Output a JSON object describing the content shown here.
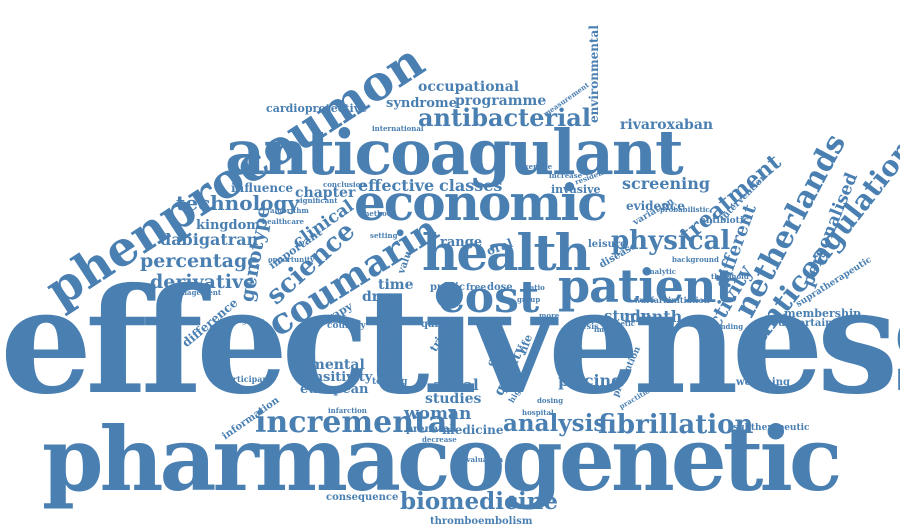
{
  "accent_color": "#4a7fb2",
  "words": {
    "effectiveness": "effectiveness",
    "pharmacogenetic": "pharmacogenetic",
    "anticoagulant": "anticoagulant",
    "phenprocoumon": "phenprocoumon",
    "economic": "economic",
    "health": "health",
    "cost": "cost",
    "patient": "patient",
    "coumarin": "coumarin",
    "netherlands": "netherlands",
    "anticoagulation": "anticoagulation",
    "incremental": "incremental",
    "fibrillation": "fibrillation",
    "analysis": "analysis",
    "biomedicine": "biomedicine",
    "antibacterial": "antibacterial",
    "physical": "physical",
    "science": "science",
    "treatment": "treatment",
    "activity": "activity",
    "different": "different",
    "personalised": "personalised",
    "technology": "technology",
    "percentage": "percentage",
    "derivative": "derivative",
    "dabigatran": "dabigatran",
    "genotype": "genotype",
    "clinical": "clinical",
    "effective": "effective",
    "classes": "classes",
    "screening": "screening",
    "occupational": "occupational",
    "programme": "programme",
    "rivaroxaban": "rivaroxaban",
    "environmental": "environmental",
    "syndrome": "syndrome",
    "cardioprotective": "cardioprotective",
    "influence": "influence",
    "chapter": "chapter",
    "kingdom": "kingdom",
    "woman": "woman",
    "pricing": "pricing",
    "studies": "studies",
    "atrial": "atrial",
    "stroke": "stroke",
    "quality": "quality",
    "month": "month",
    "study": "study",
    "range": "range",
    "oral": "oral",
    "drug": "drug",
    "time": "time",
    "mental": "mental",
    "sensitivity": "sensitivity",
    "european": "european",
    "difference": "difference",
    "membership": "membership",
    "uncertainty": "uncertainty",
    "wellbeing": "wellbeing",
    "subtherapeutic": "subtherapeutic",
    "supratherapeutic": "supratherapeutic",
    "consequence": "consequence",
    "thromboembolism": "thromboembolism",
    "information": "information",
    "medicine": "medicine",
    "prenatal": "prenatal",
    "participant": "participant",
    "testing": "testing",
    "evidence": "evidence",
    "invasive": "invasive",
    "increase": "increase",
    "conclusion": "conclusion",
    "important": "important",
    "therapy": "therapy",
    "country": "country",
    "management": "management",
    "willingness": "willingness",
    "intervention": "intervention",
    "antibiotic": "antibiotic",
    "variation": "variation",
    "measurement": "measurement",
    "international": "international",
    "significant": "significant",
    "leisure": "leisure",
    "disease": "disease",
    "qalys": "qalys",
    "public": "public",
    "free": "free",
    "dose": "dose",
    "care": "care",
    "home": "home",
    "trial": "trial",
    "life": "life",
    "ratio": "ratio",
    "group": "group",
    "more": "more",
    "based": "based",
    "thesis": "thesis",
    "impact": "impact",
    "warfarin": "warfarin",
    "initiation": "initiation",
    "prevention": "prevention",
    "value": "value",
    "setting": "setting",
    "method": "method",
    "healthcare": "healthcare",
    "hospital": "hospital",
    "infarction": "infarction",
    "evaluation": "evaluation",
    "higher": "higher",
    "practitioner": "practitioner",
    "threshold": "threshold",
    "attending": "attending",
    "dosing": "dosing",
    "exercise": "exercise",
    "travel": "travel",
    "genetic": "genetic",
    "probabilistic": "probabilistic",
    "background": "background",
    "analytic": "analytic",
    "opportunity": "opportunity",
    "decrease": "decrease",
    "resident": "resident",
    "algorithm": "algorithm"
  }
}
